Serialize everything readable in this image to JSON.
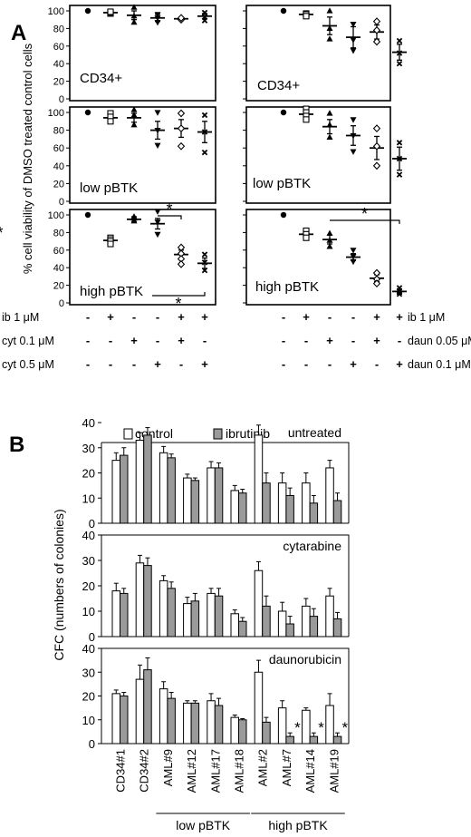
{
  "panel_letters": {
    "A": "A",
    "B": "B"
  },
  "chart_data": [
    {
      "panel": "A",
      "type": "scatter",
      "row_label": "CD34+",
      "treatment_set": "cyt",
      "ylim": [
        0,
        100
      ],
      "yticks": [
        0,
        20,
        40,
        60,
        80,
        100
      ],
      "ylabel": "% cell viability of DMSO treated control cells",
      "series": [
        {
          "mean": 100,
          "sem": 0,
          "points": [
            100
          ]
        },
        {
          "mean": 98,
          "sem": 1.5,
          "points": [
            97,
            98,
            99
          ]
        },
        {
          "mean": 95,
          "sem": 5,
          "points": [
            104,
            94,
            87
          ]
        },
        {
          "mean": 92,
          "sem": 4,
          "points": [
            96,
            92,
            87
          ]
        },
        {
          "mean": 91,
          "sem": 1.5,
          "points": [
            91,
            90,
            92
          ]
        },
        {
          "mean": 94,
          "sem": 3,
          "points": [
            98,
            93,
            89
          ]
        }
      ]
    },
    {
      "panel": "A",
      "type": "scatter",
      "row_label": "CD34+",
      "treatment_set": "daun",
      "ylim": [
        0,
        100
      ],
      "yticks": [
        0,
        20,
        40,
        60,
        80,
        100
      ],
      "series": [
        {
          "mean": 100,
          "sem": 0,
          "points": [
            100
          ]
        },
        {
          "mean": 96,
          "sem": 2,
          "points": [
            97,
            96,
            94
          ]
        },
        {
          "mean": 83,
          "sem": 10,
          "points": [
            100,
            80,
            68
          ]
        },
        {
          "mean": 70,
          "sem": 12,
          "points": [
            85,
            67,
            55
          ]
        },
        {
          "mean": 76,
          "sem": 8,
          "points": [
            88,
            78,
            65
          ]
        },
        {
          "mean": 53,
          "sem": 9,
          "points": [
            66,
            52,
            40
          ]
        }
      ]
    },
    {
      "panel": "A",
      "type": "scatter",
      "row_label": "low pBTK",
      "treatment_set": "cyt",
      "ylim": [
        0,
        100
      ],
      "yticks": [
        0,
        20,
        40,
        60,
        80,
        100
      ],
      "series": [
        {
          "mean": 100,
          "sem": 0,
          "points": [
            100
          ]
        },
        {
          "mean": 94,
          "sem": 3,
          "points": [
            99,
            95,
            90
          ]
        },
        {
          "mean": 94,
          "sem": 5,
          "points": [
            103,
            97,
            86
          ]
        },
        {
          "mean": 80,
          "sem": 10,
          "points": [
            100,
            80,
            63
          ]
        },
        {
          "mean": 82,
          "sem": 10,
          "points": [
            99,
            82,
            62
          ]
        },
        {
          "mean": 78,
          "sem": 12,
          "points": [
            97,
            78,
            55
          ]
        }
      ]
    },
    {
      "panel": "A",
      "type": "scatter",
      "row_label": "low pBTK",
      "treatment_set": "daun",
      "ylim": [
        0,
        100
      ],
      "yticks": [
        0,
        20,
        40,
        60,
        80,
        100
      ],
      "series": [
        {
          "mean": 100,
          "sem": 0,
          "points": [
            100
          ]
        },
        {
          "mean": 98,
          "sem": 3,
          "points": [
            104,
            100,
            96,
            92
          ]
        },
        {
          "mean": 84,
          "sem": 8,
          "points": [
            99,
            86,
            72
          ]
        },
        {
          "mean": 74,
          "sem": 11,
          "points": [
            92,
            74,
            56
          ]
        },
        {
          "mean": 60,
          "sem": 13,
          "points": [
            82,
            62,
            40
          ]
        },
        {
          "mean": 48,
          "sem": 13,
          "points": [
            66,
            48,
            30
          ]
        }
      ]
    },
    {
      "panel": "A",
      "type": "scatter",
      "row_label": "high pBTK",
      "treatment_set": "cyt",
      "ylim": [
        0,
        100
      ],
      "yticks": [
        0,
        20,
        40,
        60,
        80,
        100
      ],
      "significance": [
        {
          "from": 3,
          "to": 4,
          "label": "*",
          "position": "above"
        },
        {
          "from": 2,
          "to": 5,
          "label": "*",
          "position": "below"
        }
      ],
      "series": [
        {
          "mean": 100,
          "sem": 0,
          "points": [
            100
          ]
        },
        {
          "mean": 71,
          "sem": 3,
          "points": [
            74,
            72,
            70,
            67
          ]
        },
        {
          "mean": 95,
          "sem": 3,
          "points": [
            98,
            96,
            93
          ]
        },
        {
          "mean": 90,
          "sem": 6,
          "points": [
            104,
            92,
            78
          ]
        },
        {
          "mean": 55,
          "sem": 5,
          "points": [
            63,
            56,
            50,
            44
          ]
        },
        {
          "mean": 45,
          "sem": 6,
          "points": [
            55,
            46,
            37
          ]
        }
      ]
    },
    {
      "panel": "A",
      "type": "scatter",
      "row_label": "high pBTK",
      "treatment_set": "daun",
      "ylim": [
        0,
        100
      ],
      "yticks": [
        0,
        20,
        40,
        60,
        80,
        100
      ],
      "significance": [
        {
          "from": 2,
          "to": 5,
          "label": "*",
          "position": "above"
        },
        {
          "from": 3,
          "to": 6,
          "label": "*",
          "position": "above"
        }
      ],
      "series": [
        {
          "mean": 100,
          "sem": 0,
          "points": [
            100
          ]
        },
        {
          "mean": 78,
          "sem": 3,
          "points": [
            82,
            78,
            74
          ]
        },
        {
          "mean": 72,
          "sem": 5,
          "points": [
            79,
            71,
            64
          ]
        },
        {
          "mean": 52,
          "sem": 4,
          "points": [
            60,
            53,
            47
          ]
        },
        {
          "mean": 28,
          "sem": 4,
          "points": [
            34,
            27,
            22
          ]
        },
        {
          "mean": 13,
          "sem": 3,
          "points": [
            17,
            13,
            10
          ]
        }
      ]
    },
    {
      "panel": "A",
      "type": "table",
      "left_rows": [
        {
          "label": "ib 1 μM",
          "marks": [
            "-",
            "+",
            "-",
            "-",
            "+",
            "+"
          ]
        },
        {
          "label": "cyt 0.1 μM",
          "marks": [
            "-",
            "-",
            "+",
            "-",
            "+",
            "-"
          ]
        },
        {
          "label": "cyt 0.5 μM",
          "marks": [
            "-",
            "-",
            "-",
            "+",
            "-",
            "+"
          ]
        }
      ],
      "right_rows": [
        {
          "label": "ib 1 μM",
          "marks": [
            "-",
            "+",
            "-",
            "-",
            "+",
            "+"
          ]
        },
        {
          "label": "daun 0.05 μM",
          "marks": [
            "-",
            "-",
            "+",
            "-",
            "+",
            "-"
          ]
        },
        {
          "label": "daun 0.1 μM",
          "marks": [
            "-",
            "-",
            "-",
            "+",
            "-",
            "+"
          ]
        }
      ]
    },
    {
      "panel": "B",
      "type": "bar",
      "legend": [
        "control",
        "ibrutinib"
      ],
      "ylabel": "CFC (numbers of colonies)",
      "ylim": [
        0,
        40
      ],
      "yticks": [
        0,
        10,
        20,
        30,
        40
      ],
      "categories": [
        "CD34#1",
        "CD34#2",
        "AML#9",
        "AML#12",
        "AML#17",
        "AML#18",
        "AML#2",
        "AML#7",
        "AML#14",
        "AML#19"
      ],
      "groups": [
        {
          "label": "low pBTK",
          "from": 2,
          "to": 5
        },
        {
          "label": "high pBTK",
          "from": 6,
          "to": 9
        }
      ],
      "panels": [
        {
          "title": "untreated",
          "series": [
            {
              "name": "control",
              "values": [
                25,
                33,
                28,
                18,
                22,
                13,
                35,
                16,
                16,
                22
              ],
              "errors": [
                3,
                3,
                2.5,
                1.5,
                2.5,
                2,
                4,
                4,
                4,
                3
              ]
            },
            {
              "name": "ibrutinib",
              "values": [
                27,
                35,
                26,
                17,
                22,
                12,
                16,
                11,
                8,
                9
              ],
              "errors": [
                3,
                3,
                1.5,
                1,
                2,
                1.5,
                4,
                3,
                3,
                3
              ]
            }
          ],
          "stars": []
        },
        {
          "title": "cytarabine",
          "series": [
            {
              "name": "control",
              "values": [
                18,
                29,
                22,
                13,
                17,
                9,
                26,
                10,
                12,
                16
              ],
              "errors": [
                3,
                3,
                2,
                2.5,
                2,
                1.5,
                3.5,
                3.5,
                3,
                3
              ]
            },
            {
              "name": "ibrutinib",
              "values": [
                17,
                28,
                19,
                14,
                16,
                6,
                12,
                5,
                8,
                7
              ],
              "errors": [
                2,
                3,
                2.5,
                3,
                3,
                1.5,
                4,
                3,
                3,
                2.5
              ]
            }
          ],
          "stars": []
        },
        {
          "title": "daunorubicin",
          "series": [
            {
              "name": "control",
              "values": [
                21,
                27,
                23,
                17,
                18,
                11,
                30,
                15,
                14,
                16
              ],
              "errors": [
                1.5,
                6,
                3,
                1,
                3,
                1,
                5,
                3,
                1,
                5
              ]
            },
            {
              "name": "ibrutinib",
              "values": [
                20,
                31,
                19,
                17,
                16,
                10,
                9,
                3,
                3,
                3
              ],
              "errors": [
                1.5,
                5,
                2.5,
                1,
                3,
                0.5,
                2,
                1.5,
                1.5,
                1.5
              ]
            }
          ],
          "stars": [
            {
              "index": 7,
              "label": "*"
            },
            {
              "index": 8,
              "label": "*"
            },
            {
              "index": 9,
              "label": "*"
            }
          ]
        }
      ]
    }
  ]
}
